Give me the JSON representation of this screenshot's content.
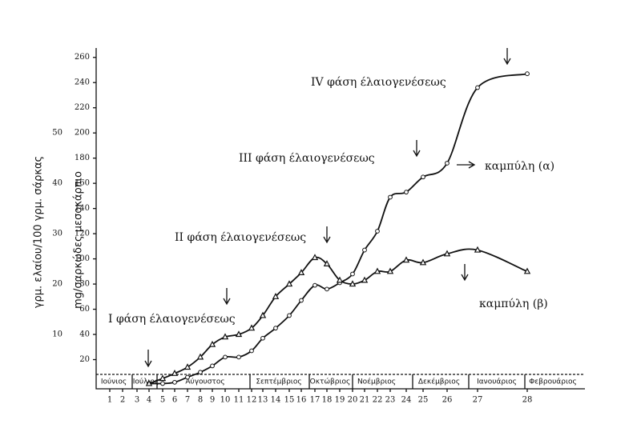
{
  "chart_data": {
    "type": "line",
    "y_label": "γρμ. ελαίου/100 γρμ. σάρκας",
    "y2_label": "mg/σαρκώδες μεσοκάρπιο",
    "categories": [
      "1",
      "2",
      "3",
      "4",
      "5",
      "6",
      "7",
      "8",
      "9",
      "10",
      "11",
      "12",
      "13",
      "14",
      "15",
      "16",
      "17",
      "18",
      "19",
      "20",
      "21",
      "22",
      "23",
      "24",
      "25",
      "26",
      "27",
      "28"
    ],
    "months": [
      "Ιούνιος",
      "Ιούλιος",
      "Αύγουστος",
      "Σεπτέμβριος",
      "Οκτώβριος",
      "Νοέμβριος",
      "Δεκέμβριος",
      "Ιανουάριος",
      "Φεβρουάριος"
    ],
    "series": [
      {
        "name": "καμπύλη (α)",
        "marker": "circle",
        "color": "#111",
        "values": [
          null,
          null,
          null,
          1,
          1,
          2,
          6,
          10,
          15,
          22,
          22,
          27,
          37,
          45,
          55,
          67,
          79,
          76,
          81,
          88,
          107,
          122,
          149,
          153,
          165,
          176,
          236,
          247
        ]
      },
      {
        "name": "καμπύλη (β)",
        "marker": "triangle",
        "color": "#111",
        "values": [
          null,
          null,
          null,
          1,
          5,
          9,
          14,
          22,
          32,
          38,
          40,
          45,
          55,
          70,
          80,
          89,
          101,
          96,
          83,
          80,
          83,
          90,
          90,
          99,
          97,
          104,
          107,
          90
        ]
      }
    ],
    "ylim": [
      0,
      270
    ],
    "yticks": [
      20,
      40,
      60,
      80,
      100,
      120,
      140,
      160,
      180,
      200,
      220,
      240,
      260
    ],
    "y2lim": [
      0,
      67.5
    ],
    "y2ticks": [
      10,
      20,
      30,
      40,
      50
    ],
    "annotations": [
      "I φάση έλαιογενέσεως",
      "II φάση έλαιογενέσεως",
      "III φάση έλαιογενέσεως",
      "IV φάση έλαιογενέσεως"
    ]
  }
}
